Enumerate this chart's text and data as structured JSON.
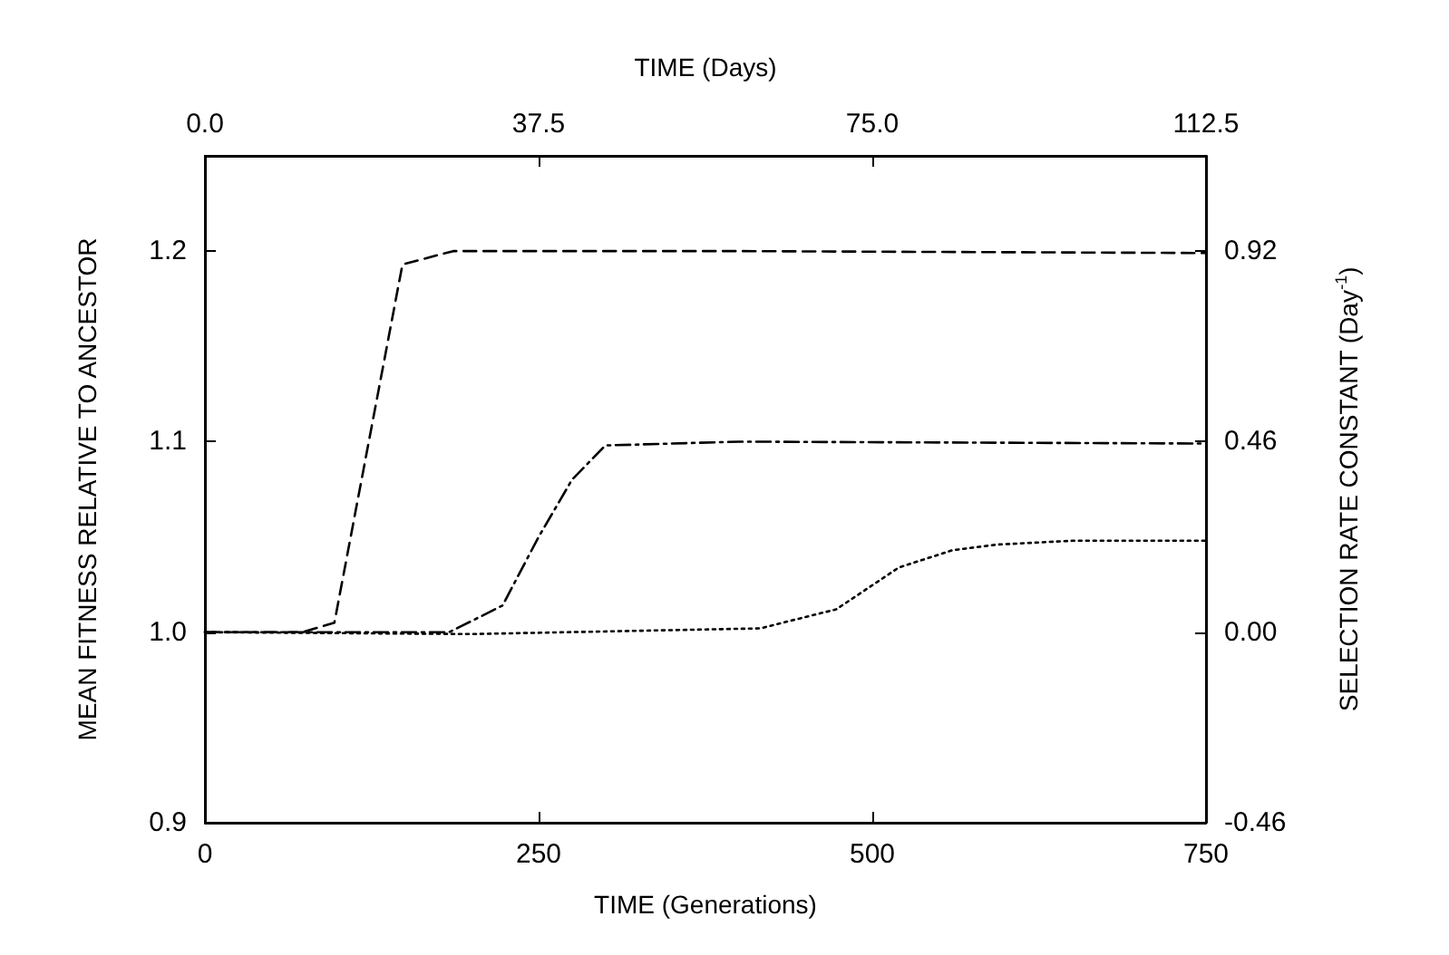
{
  "chart_data": {
    "type": "line",
    "xlabel": "TIME (Generations)",
    "ylabel": "MEAN FITNESS RELATIVE TO ANCESTOR",
    "y2label": "SELECTION RATE CONSTANT (Day$^{-1}$)",
    "x2label": "TIME (Days)",
    "xlim": [
      0,
      750
    ],
    "xticks": [
      0,
      250,
      500,
      750
    ],
    "ylim": [
      0.9,
      1.25
    ],
    "yticks": [
      0.9,
      {
        "value": 1,
        "label": "1.0"
      },
      1.1,
      1.2
    ],
    "y2lim": [
      -0.46,
      1.15
    ],
    "y2ticks": [
      -0.46,
      {
        "value": 0,
        "label": "0.00"
      },
      0.46,
      0.92
    ],
    "x2lim": [
      0,
      112.5
    ],
    "x2ticks": [
      {
        "value": 0,
        "label": "0.0"
      },
      37.5,
      {
        "value": 75,
        "label": "75.0"
      },
      112.5
    ],
    "grid": false,
    "series": [
      {
        "color": "#000000",
        "line_style": "dashed",
        "x": [
          0,
          73,
          97,
          148,
          186,
          400,
          750
        ],
        "values": [
          1.0,
          1.0,
          1.005,
          1.193,
          1.2,
          1.2,
          1.199
        ]
      },
      {
        "color": "#000000",
        "line_style": "dashdot",
        "x": [
          0,
          183,
          223,
          250,
          275,
          300,
          400,
          750
        ],
        "values": [
          1.0,
          1.0,
          1.014,
          1.05,
          1.08,
          1.098,
          1.1,
          1.099
        ]
      },
      {
        "color": "#000000",
        "line_style": "dotted",
        "x": [
          0,
          200,
          416,
          473,
          520,
          560,
          594,
          650,
          750
        ],
        "values": [
          1.0,
          0.999,
          1.002,
          1.012,
          1.034,
          1.043,
          1.046,
          1.048,
          1.048
        ]
      }
    ]
  }
}
